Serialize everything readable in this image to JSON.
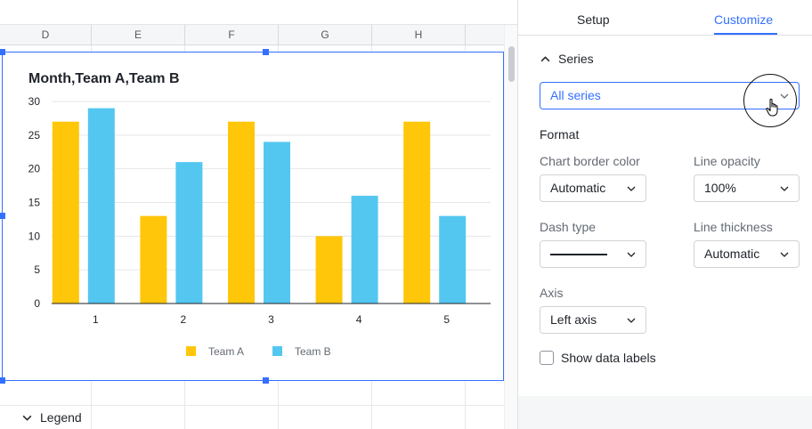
{
  "sheet": {
    "columns": [
      "D",
      "E",
      "F",
      "G",
      "H"
    ]
  },
  "chart": {
    "chart_data": {
      "type": "bar",
      "title": "Month,Team A,Team B",
      "categories": [
        "1",
        "2",
        "3",
        "4",
        "5"
      ],
      "series": [
        {
          "name": "Team A",
          "values": [
            27,
            13,
            27,
            10,
            27
          ],
          "color": "#ffc60a"
        },
        {
          "name": "Team B",
          "values": [
            29,
            21,
            24,
            16,
            13
          ],
          "color": "#54c7f0"
        }
      ],
      "yticks": [
        "0",
        "5",
        "10",
        "15",
        "20",
        "25",
        "30"
      ],
      "ylim": [
        0,
        30
      ],
      "xlabel": "",
      "ylabel": "",
      "grid": true,
      "legend": "bottom-center"
    }
  },
  "panel": {
    "tabs": [
      {
        "label": "Setup",
        "active": false
      },
      {
        "label": "Customize",
        "active": true
      }
    ],
    "series_section": {
      "title": "Series",
      "selected": "All series"
    },
    "format_title": "Format",
    "chart_border_color": {
      "label": "Chart border color",
      "value": "Automatic"
    },
    "line_opacity": {
      "label": "Line opacity",
      "value": "100%"
    },
    "dash_type": {
      "label": "Dash type"
    },
    "line_thickness": {
      "label": "Line thickness",
      "value": "Automatic"
    },
    "axis": {
      "label": "Axis",
      "value": "Left axis"
    },
    "show_data_labels": {
      "label": "Show data labels",
      "checked": false
    },
    "legend_section": {
      "title": "Legend"
    }
  },
  "colors": {
    "accent": "#3370ff",
    "team_a": "#ffc60a",
    "team_b": "#54c7f0"
  }
}
